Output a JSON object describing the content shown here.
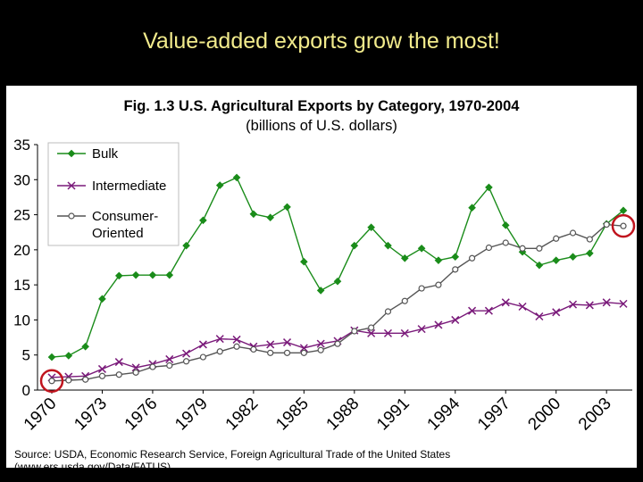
{
  "slide": {
    "title": "Value-added exports grow the most!",
    "source_line1": "Source: USDA, Economic Research Service, Foreign Agricultural Trade of the United States",
    "source_line2": "(www.ers.usda.gov/Data/FATUS)"
  },
  "chart_data": {
    "type": "line",
    "title": "Fig. 1.3  U.S. Agricultural Exports by Category, 1970-2004",
    "subtitle": "(billions of U.S. dollars)",
    "xlabel": "",
    "ylabel": "",
    "x": [
      1970,
      1971,
      1972,
      1973,
      1974,
      1975,
      1976,
      1977,
      1978,
      1979,
      1980,
      1981,
      1982,
      1983,
      1984,
      1985,
      1986,
      1987,
      1988,
      1989,
      1990,
      1991,
      1992,
      1993,
      1994,
      1995,
      1996,
      1997,
      1998,
      1999,
      2000,
      2001,
      2002,
      2003,
      2004
    ],
    "x_ticks": [
      "1970",
      "1973",
      "1976",
      "1979",
      "1982",
      "1985",
      "1988",
      "1991",
      "1994",
      "1997",
      "2000",
      "2003"
    ],
    "ylim": [
      0,
      35
    ],
    "y_ticks": [
      "0",
      "5",
      "10",
      "15",
      "20",
      "25",
      "30",
      "35"
    ],
    "grid": false,
    "legend_position": "top-left",
    "series": [
      {
        "name": "Bulk",
        "color": "#1a8c1a",
        "marker": "diamond",
        "values": [
          4.7,
          4.9,
          6.2,
          13.0,
          16.3,
          16.4,
          16.4,
          16.4,
          20.6,
          24.2,
          29.2,
          30.3,
          25.1,
          24.6,
          26.1,
          18.3,
          14.2,
          15.5,
          20.6,
          23.2,
          20.6,
          18.8,
          20.2,
          18.5,
          19.0,
          26.0,
          28.9,
          23.5,
          19.7,
          17.8,
          18.5,
          19.0,
          19.5,
          23.7,
          25.6
        ]
      },
      {
        "name": "Intermediate",
        "color": "#7a1a7a",
        "marker": "x",
        "values": [
          1.8,
          1.9,
          2.0,
          3.0,
          4.0,
          3.2,
          3.7,
          4.4,
          5.2,
          6.5,
          7.3,
          7.2,
          6.2,
          6.5,
          6.8,
          6.0,
          6.6,
          7.0,
          8.5,
          8.1,
          8.1,
          8.1,
          8.7,
          9.3,
          10.0,
          11.3,
          11.3,
          12.5,
          11.9,
          10.5,
          11.1,
          12.2,
          12.1,
          12.5,
          12.3
        ]
      },
      {
        "name": "Consumer-Oriented",
        "color": "#555555",
        "marker": "circle",
        "values": [
          1.3,
          1.4,
          1.5,
          2.0,
          2.2,
          2.5,
          3.3,
          3.5,
          4.1,
          4.7,
          5.5,
          6.2,
          5.8,
          5.3,
          5.3,
          5.3,
          5.7,
          6.6,
          8.4,
          8.9,
          11.2,
          12.7,
          14.5,
          15.0,
          17.2,
          18.8,
          20.3,
          21.0,
          20.2,
          20.2,
          21.6,
          22.4,
          21.5,
          23.6,
          23.4
        ]
      }
    ],
    "annotations": [
      {
        "type": "circle",
        "color": "#c0141e",
        "target": "Consumer-Oriented 1970"
      },
      {
        "type": "circle",
        "color": "#c0141e",
        "target": "Consumer-Oriented 2004"
      }
    ]
  }
}
